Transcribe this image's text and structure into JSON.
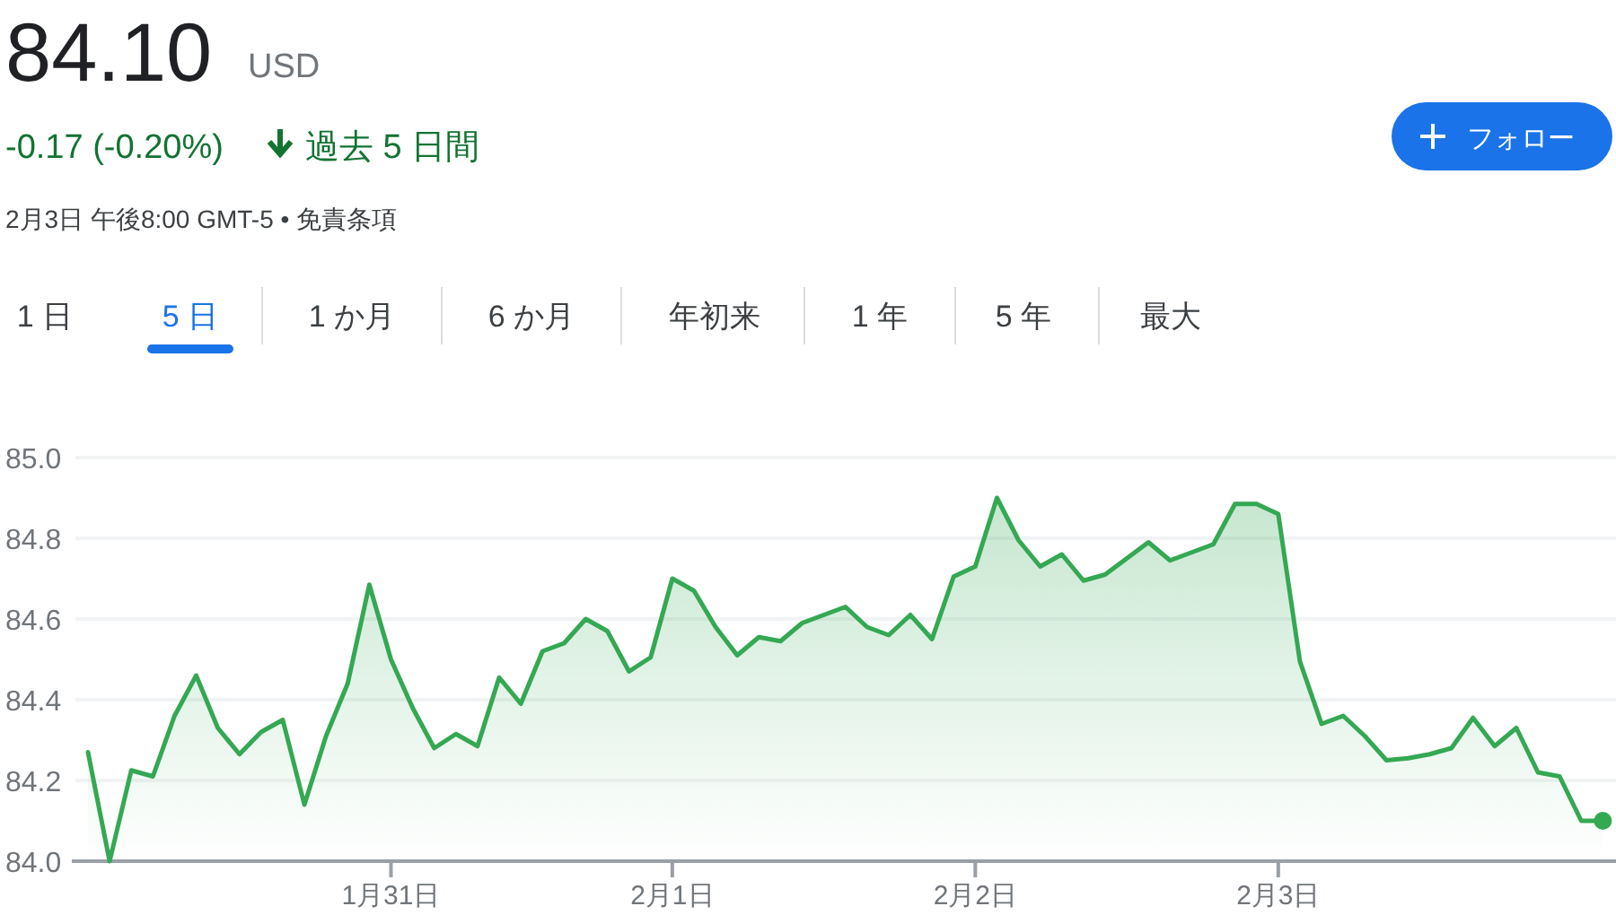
{
  "chart_data": {
    "type": "area",
    "title": "84.10",
    "annotations": [
      "USD",
      "-0.17 (-0.20%)",
      "過去 5 日間",
      "2月3日 午後8:00 GMT-5 • 免責条項",
      "フォロー",
      "1 日",
      "5 日",
      "1 か月",
      "6 か月",
      "年初来",
      "1 年",
      "5 年",
      "最大"
    ],
    "categories": [
      null,
      null,
      null,
      null,
      null,
      null,
      null,
      null,
      null,
      null,
      null,
      null,
      null,
      null,
      "1月31日",
      null,
      null,
      null,
      null,
      null,
      null,
      null,
      null,
      null,
      null,
      null,
      null,
      "2月1日",
      null,
      null,
      null,
      null,
      null,
      null,
      null,
      null,
      null,
      null,
      null,
      null,
      null,
      "2月2日",
      null,
      null,
      null,
      null,
      null,
      null,
      null,
      null,
      null,
      null,
      null,
      null,
      null,
      "2月3日",
      null,
      null,
      null,
      null,
      null,
      null,
      null,
      null,
      null,
      null,
      null,
      null,
      null,
      null,
      null
    ],
    "values": [
      84.27,
      84.0,
      84.225,
      84.21,
      84.36,
      84.46,
      84.33,
      84.265,
      84.32,
      84.35,
      84.14,
      84.31,
      84.44,
      84.685,
      84.5,
      84.38,
      84.28,
      84.315,
      84.285,
      84.455,
      84.39,
      84.52,
      84.54,
      84.6,
      84.57,
      84.47,
      84.505,
      84.7,
      84.67,
      84.58,
      84.51,
      84.555,
      84.545,
      84.59,
      84.61,
      84.63,
      84.58,
      84.56,
      84.61,
      84.55,
      84.705,
      84.73,
      84.9,
      84.795,
      84.73,
      84.76,
      84.695,
      84.71,
      84.75,
      84.79,
      84.745,
      84.765,
      84.785,
      84.885,
      84.885,
      84.86,
      84.495,
      84.34,
      84.36,
      84.31,
      84.25,
      84.255,
      84.265,
      84.28,
      84.355,
      84.285,
      84.33,
      84.22,
      84.21,
      84.1,
      84.1
    ],
    "color": "#34a853",
    "ylim": [
      84.0,
      85.0
    ],
    "yticks": [
      {
        "value": 84.0,
        "label": "84.0"
      },
      {
        "value": 84.2,
        "label": "84.2"
      },
      {
        "value": 84.4,
        "label": "84.4"
      },
      {
        "value": 84.6,
        "label": "84.6"
      },
      {
        "value": 84.8,
        "label": "84.8"
      },
      {
        "value": 85.0,
        "label": "85.0"
      }
    ],
    "grid": "y"
  }
}
